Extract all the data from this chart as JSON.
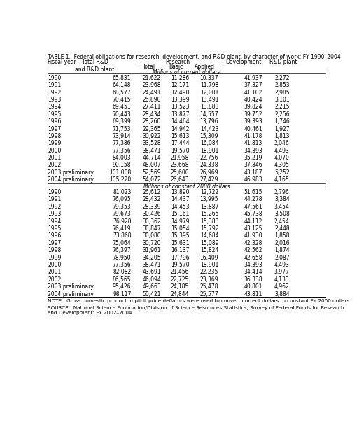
{
  "title": "TABLE 1.  Federal obligations for research, development, and R&D plant, by character of work: FY 1990–2004",
  "subheader2_current": "Millions of current dollars",
  "subheader2_constant": "Millions of constant 2000 dollars",
  "current_rows": [
    [
      "1990",
      "65,831",
      "21,622",
      "11,286",
      "10,337",
      "41,937",
      "2,272"
    ],
    [
      "1991",
      "64,148",
      "23,968",
      "12,171",
      "11,798",
      "37,327",
      "2,853"
    ],
    [
      "1992",
      "68,577",
      "24,491",
      "12,490",
      "12,001",
      "41,102",
      "2,985"
    ],
    [
      "1993",
      "70,415",
      "26,890",
      "13,399",
      "13,491",
      "40,424",
      "3,101"
    ],
    [
      "1994",
      "69,451",
      "27,411",
      "13,523",
      "13,888",
      "39,824",
      "2,215"
    ],
    [
      "1995",
      "70,443",
      "28,434",
      "13,877",
      "14,557",
      "39,752",
      "2,256"
    ],
    [
      "1996",
      "69,399",
      "28,260",
      "14,464",
      "13,796",
      "39,393",
      "1,746"
    ],
    [
      "1997",
      "71,753",
      "29,365",
      "14,942",
      "14,423",
      "40,461",
      "1,927"
    ],
    [
      "1998",
      "73,914",
      "30,922",
      "15,613",
      "15,309",
      "41,178",
      "1,813"
    ],
    [
      "1999",
      "77,386",
      "33,528",
      "17,444",
      "16,084",
      "41,813",
      "2,046"
    ],
    [
      "2000",
      "77,356",
      "38,471",
      "19,570",
      "18,901",
      "34,393",
      "4,493"
    ],
    [
      "2001",
      "84,003",
      "44,714",
      "21,958",
      "22,756",
      "35,219",
      "4,070"
    ],
    [
      "2002",
      "90,158",
      "48,007",
      "23,668",
      "24,338",
      "37,846",
      "4,305"
    ],
    [
      "2003 preliminary",
      "101,008",
      "52,569",
      "25,600",
      "26,969",
      "43,187",
      "5,252"
    ],
    [
      "2004 preliminary",
      "105,220",
      "54,072",
      "26,643",
      "27,429",
      "46,983",
      "4,165"
    ]
  ],
  "constant_rows": [
    [
      "1990",
      "81,023",
      "26,612",
      "13,890",
      "12,722",
      "51,615",
      "2,796"
    ],
    [
      "1991",
      "76,095",
      "28,432",
      "14,437",
      "13,995",
      "44,278",
      "3,384"
    ],
    [
      "1992",
      "79,353",
      "28,339",
      "14,453",
      "13,887",
      "47,561",
      "3,454"
    ],
    [
      "1993",
      "79,673",
      "30,426",
      "15,161",
      "15,265",
      "45,738",
      "3,508"
    ],
    [
      "1994",
      "76,928",
      "30,362",
      "14,979",
      "15,383",
      "44,112",
      "2,454"
    ],
    [
      "1995",
      "76,419",
      "30,847",
      "15,054",
      "15,792",
      "43,125",
      "2,448"
    ],
    [
      "1996",
      "73,868",
      "30,080",
      "15,395",
      "14,684",
      "41,930",
      "1,858"
    ],
    [
      "1997",
      "75,064",
      "30,720",
      "15,631",
      "15,089",
      "42,328",
      "2,016"
    ],
    [
      "1998",
      "76,397",
      "31,961",
      "16,137",
      "15,824",
      "42,562",
      "1,874"
    ],
    [
      "1999",
      "78,950",
      "34,205",
      "17,796",
      "16,409",
      "42,658",
      "2,087"
    ],
    [
      "2000",
      "77,356",
      "38,471",
      "19,570",
      "18,901",
      "34,393",
      "4,493"
    ],
    [
      "2001",
      "82,082",
      "43,691",
      "21,456",
      "22,235",
      "34,414",
      "3,977"
    ],
    [
      "2002",
      "86,565",
      "46,094",
      "22,725",
      "23,369",
      "36,338",
      "4,133"
    ],
    [
      "2003 preliminary",
      "95,426",
      "49,663",
      "24,185",
      "25,478",
      "40,801",
      "4,962"
    ],
    [
      "2004 preliminary",
      "98,117",
      "50,421",
      "24,844",
      "25,577",
      "43,811",
      "3,884"
    ]
  ],
  "note": "NOTE:  Gross domestic product implicit price deflators were used to convert current dollars to constant FY 2000 dollars.",
  "source": "SOURCE:  National Science Foundation/Division of Science Resources Statistics, Survey of Federal Funds for Research\nand Development: FY 2002–2004.",
  "title_fs": 5.5,
  "header_fs": 5.5,
  "data_fs": 5.5,
  "note_fs": 5.2
}
